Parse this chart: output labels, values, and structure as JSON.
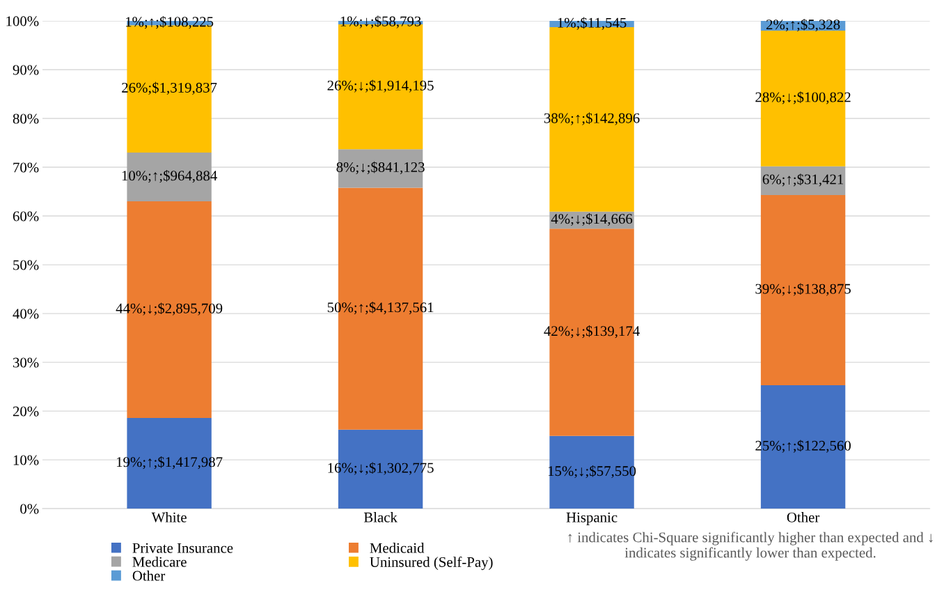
{
  "chart_data": {
    "type": "bar",
    "stacked": true,
    "categories": [
      "White",
      "Black",
      "Hispanic",
      "Other"
    ],
    "series": [
      {
        "name": "Private Insurance",
        "color": "#4472c4",
        "values": [
          18.6,
          16.2,
          14.9,
          25.3
        ],
        "value_labels": [
          "19%;↑;$1,417,987",
          "16%;↓;$1,302,775",
          "15%;↓;$57,550",
          "25%;↑;$122,560"
        ]
      },
      {
        "name": "Medicaid",
        "color": "#ed7d31",
        "values": [
          44.4,
          49.6,
          42.5,
          39.0
        ],
        "value_labels": [
          "44%;↓;$2,895,709",
          "50%;↑;$4,137,561",
          "42%;↓;$139,174",
          "39%;↓;$138,875"
        ]
      },
      {
        "name": "Medicare",
        "color": "#a5a5a5",
        "values": [
          10.0,
          7.9,
          3.5,
          5.9
        ],
        "value_labels": [
          "10%;↑;$964,884",
          "8%;↓;$841,123",
          "4%;↓;$14,666",
          "6%;↑;$31,421"
        ]
      },
      {
        "name": "Uninsured (Self-Pay)",
        "color": "#ffc000",
        "values": [
          26.1,
          25.6,
          37.8,
          27.8
        ],
        "value_labels": [
          "26%;$1,319,837",
          "26%;↓;$1,914,195",
          "38%;↑;$142,896",
          "28%;↓;$100,822"
        ]
      },
      {
        "name": "Other",
        "color": "#5b9bd5",
        "values": [
          0.9,
          0.7,
          1.3,
          2.0
        ],
        "value_labels": [
          "1%;↑;$108,225",
          "1%;↓;$58,793",
          "1%;$11,545",
          "2%;↑;$5,328"
        ]
      }
    ],
    "ylim": [
      0,
      100
    ],
    "yticks": [
      {
        "value": 0,
        "label": "0%"
      },
      {
        "value": 10,
        "label": "10%"
      },
      {
        "value": 20,
        "label": "20%"
      },
      {
        "value": 30,
        "label": "30%"
      },
      {
        "value": 40,
        "label": "40%"
      },
      {
        "value": 50,
        "label": "50%"
      },
      {
        "value": 60,
        "label": "60%"
      },
      {
        "value": 70,
        "label": "70%"
      },
      {
        "value": 80,
        "label": "80%"
      },
      {
        "value": 90,
        "label": "90%"
      },
      {
        "value": 100,
        "label": "100%"
      }
    ],
    "grid": "y",
    "legend": "bottom left",
    "annotations": [
      "↑ indicates Chi-Square significantly higher than expected and ↓ indicates significantly lower than expected."
    ]
  }
}
